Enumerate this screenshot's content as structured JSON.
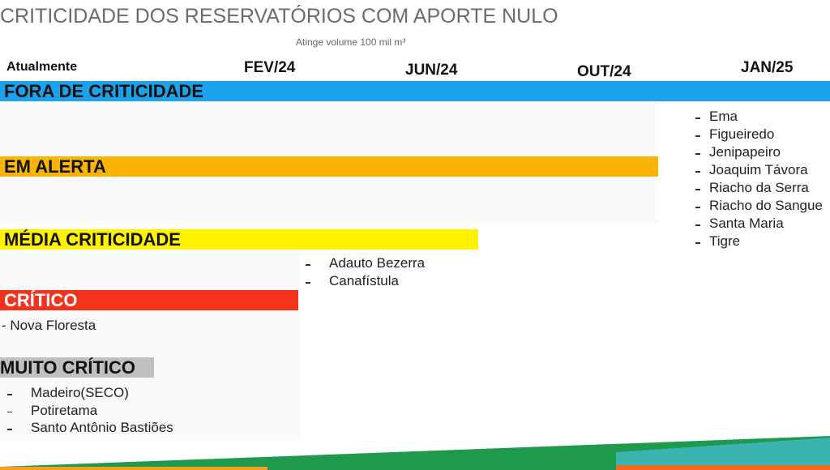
{
  "header": {
    "title": "CRITICIDADE DOS RESERVATÓRIOS COM APORTE NULO",
    "subtitle": "Atinge volume 100 mil m³"
  },
  "timeline": [
    "Atualmente",
    "FEV/24",
    "JUN/24",
    "OUT/24",
    "JAN/25"
  ],
  "levels": [
    "FORA DE CRITICIDADE",
    "EM ALERTA",
    "MÉDIA CRITICIDADE",
    "CRÍTICO",
    "MUITO CRÍTICO"
  ],
  "lists": {
    "jan25": [
      "Ema",
      "Figueiredo",
      "Jenipapeiro",
      "Joaquim Távora",
      "Riacho da Serra",
      "Riacho do Sangue",
      "Santa Maria",
      "Tigre"
    ],
    "fev24": [
      "Adauto Bezerra",
      "Canafístula"
    ],
    "critico": [
      "- Nova Floresta"
    ],
    "muito_critico": [
      "Madeiro(SECO)",
      "Potiretama",
      "Santo Antônio Bastiões"
    ]
  }
}
